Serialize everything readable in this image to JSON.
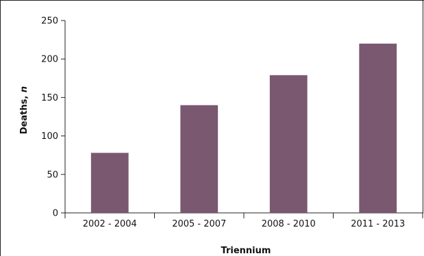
{
  "chart_data": {
    "type": "bar",
    "title": "",
    "xlabel": "Triennium",
    "ylabel_main": "Deaths, ",
    "ylabel_italic": "n",
    "categories": [
      "2002 - 2004",
      "2005 - 2007",
      "2008 - 2010",
      "2011 - 2013"
    ],
    "values": [
      78,
      140,
      179,
      220
    ],
    "ylim": [
      0,
      250
    ],
    "yticks": [
      0,
      50,
      100,
      150,
      200,
      250
    ],
    "grid": false,
    "legend": "none",
    "bar_color": "#7a5870"
  }
}
